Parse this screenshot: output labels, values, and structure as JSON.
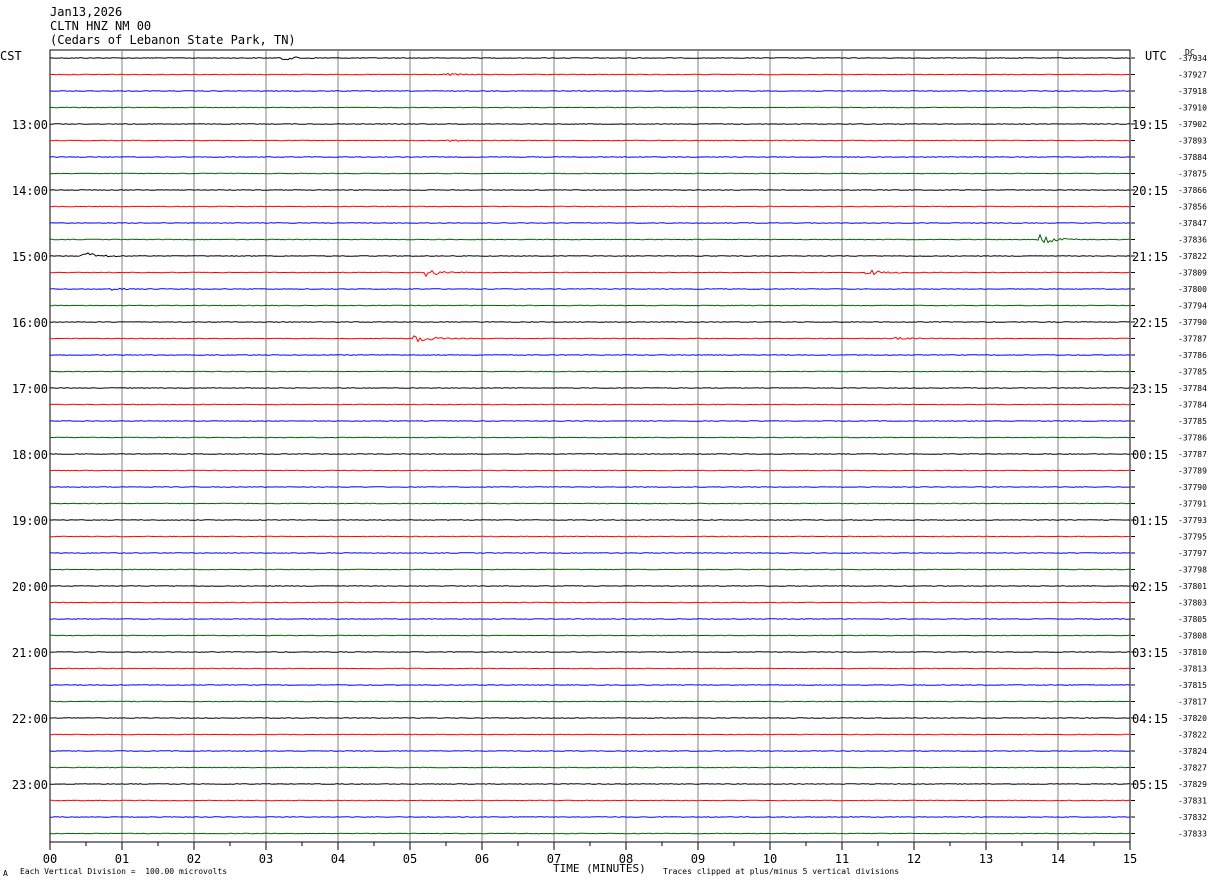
{
  "header": {
    "date": "Jan13,2026",
    "station": "CLTN HNZ NM 00",
    "location": "(Cedars of Lebanon State Park, TN)"
  },
  "labels": {
    "left_tz": "CST",
    "right_tz": "UTC",
    "right_unit": "DC",
    "xlabel": "TIME (MINUTES)",
    "footer_left": "Each Vertical Division =  100.00 microvolts",
    "footer_right": "Traces clipped at plus/minus 5 vertical divisions",
    "corner_mark": "A"
  },
  "colors": {
    "trace_cycle": [
      "#000000",
      "#ff0000",
      "#0000ff",
      "#006400"
    ],
    "grid": "#808080"
  },
  "chart_data": {
    "type": "line",
    "title": "CLTN HNZ NM 00",
    "xlabel": "TIME (MINUTES)",
    "xlim": [
      0,
      15
    ],
    "x_ticks": [
      "00",
      "01",
      "02",
      "03",
      "04",
      "05",
      "06",
      "07",
      "08",
      "09",
      "10",
      "11",
      "12",
      "13",
      "14",
      "15"
    ],
    "left_hour_labels": [
      "13:00",
      "14:00",
      "15:00",
      "16:00",
      "17:00",
      "18:00",
      "19:00",
      "20:00",
      "21:00",
      "22:00",
      "23:00"
    ],
    "right_hour_labels": [
      "19:15",
      "20:15",
      "21:15",
      "22:15",
      "23:15",
      "00:15",
      "01:15",
      "02:15",
      "03:15",
      "04:15",
      "05:15"
    ],
    "dc_offsets": [
      "-37934",
      "-37927",
      "-37918",
      "-37910",
      "-37902",
      "-37893",
      "-37884",
      "-37875",
      "-37866",
      "-37856",
      "-37847",
      "-37836",
      "-37822",
      "-37809",
      "-37800",
      "-37794",
      "-37790",
      "-37787",
      "-37786",
      "-37785",
      "-37784",
      "-37784",
      "-37785",
      "-37786",
      "-37787",
      "-37789",
      "-37790",
      "-37791",
      "-37793",
      "-37795",
      "-37797",
      "-37798",
      "-37801",
      "-37803",
      "-37805",
      "-37808",
      "-37810",
      "-37813",
      "-37815",
      "-37817",
      "-37820",
      "-37822",
      "-37824",
      "-37827",
      "-37829",
      "-37831",
      "-37832",
      "-37833"
    ],
    "events": [
      {
        "trace": 0,
        "minute": 3.2,
        "amp": 2.5
      },
      {
        "trace": 1,
        "minute": 5.5,
        "amp": 1.0
      },
      {
        "trace": 5,
        "minute": 5.5,
        "amp": 1.2
      },
      {
        "trace": 11,
        "minute": 13.75,
        "amp": 5.0
      },
      {
        "trace": 12,
        "minute": 0.45,
        "amp": 5.0
      },
      {
        "trace": 13,
        "minute": 5.2,
        "amp": 5.0
      },
      {
        "trace": 13,
        "minute": 11.35,
        "amp": 3.0
      },
      {
        "trace": 14,
        "minute": 0.85,
        "amp": 1.5
      },
      {
        "trace": 17,
        "minute": 5.05,
        "amp": 5.0
      },
      {
        "trace": 17,
        "minute": 11.7,
        "amp": 1.5
      }
    ]
  }
}
